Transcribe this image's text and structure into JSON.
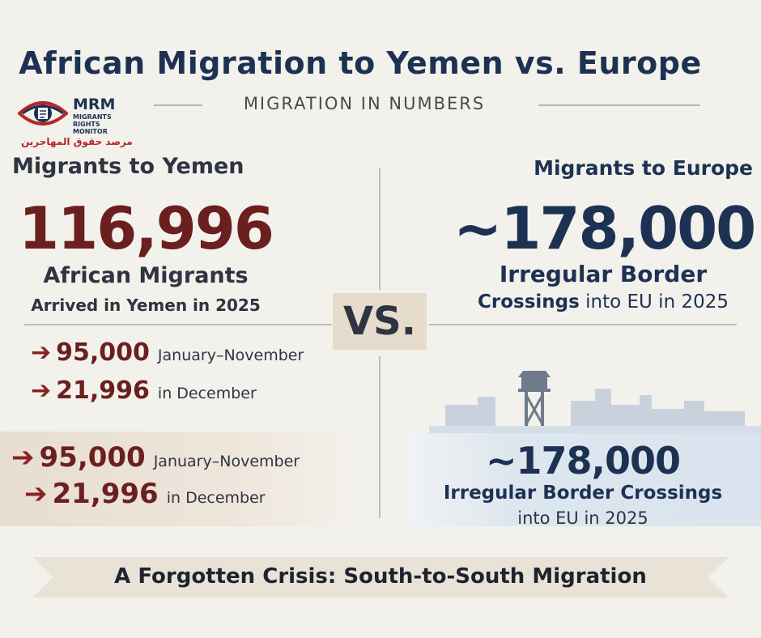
{
  "title": "African Migration to Yemen vs. Europe",
  "subtitle": "MIGRATION IN NUMBERS",
  "logo": {
    "abbr": "MRM",
    "line1": "MIGRANTS",
    "line2": "RIGHTS",
    "line3": "MONITOR",
    "arabic": "مرصد حقوق المهاجرين"
  },
  "left": {
    "heading": "Migrants to Yemen",
    "total": "116,996",
    "caption_line1": "African Migrants",
    "caption_line2": "Arrived in Yemen in 2025",
    "breakdown": [
      {
        "arrow": "➔",
        "value": "95,000",
        "label": "January–November"
      },
      {
        "arrow": "➔",
        "value": "21,996",
        "label": "in December"
      }
    ],
    "breakdown_repeat": [
      {
        "arrow": "➔",
        "value": "95,000",
        "label": "January–November"
      },
      {
        "arrow": "➔",
        "value": "21,996",
        "label": "in December"
      }
    ]
  },
  "vs_label": "VS.",
  "right": {
    "heading": "Migrants to Europe",
    "total": "~178,000",
    "caption_line1": "Irregular Border",
    "caption_line2_bold": "Crossings",
    "caption_line2_rest": " into EU in 2025",
    "repeat_total": "~178,000",
    "repeat_caption_line1": "Irregular Border Crossings",
    "repeat_caption_line2": "into EU in 2025"
  },
  "banner": "A Forgotten Crisis: South-to-South Migration",
  "icons": [
    "eye-logo-icon",
    "watchtower-icon",
    "city-skyline-icon"
  ],
  "colors": {
    "navy": "#1d3253",
    "maroon": "#6b1f1f",
    "arrow_red": "#8a2222",
    "background": "#f3f1ec",
    "vs_box": "#e6dccb",
    "banner": "#e9e2d6"
  }
}
